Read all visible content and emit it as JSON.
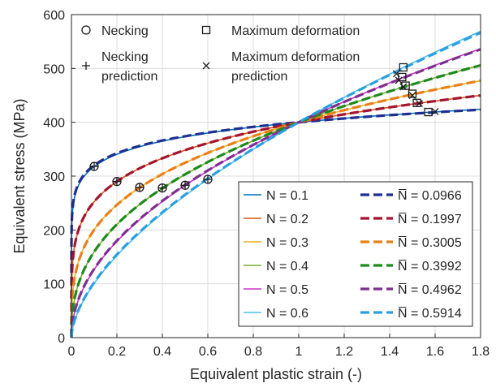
{
  "chart_data": {
    "type": "line",
    "xlabel": "Equivalent plastic strain (-)",
    "ylabel": "Equivalent stress (MPa)",
    "xlim": [
      0,
      1.8
    ],
    "ylim": [
      0,
      600
    ],
    "xticks": [
      "0",
      "0.2",
      "0.4",
      "0.6",
      "0.8",
      "1",
      "1.2",
      "1.4",
      "1.6",
      "1.8"
    ],
    "yticks": [
      "0",
      "100",
      "200",
      "300",
      "400",
      "500",
      "600"
    ],
    "grid": true,
    "model": "stress = 400 * strain^N",
    "series": [
      {
        "name": "N = 0.1",
        "exponent": 0.1,
        "style": "solid",
        "color": "#0072BD"
      },
      {
        "name": "N = 0.2",
        "exponent": 0.2,
        "style": "solid",
        "color": "#D95319"
      },
      {
        "name": "N = 0.3",
        "exponent": 0.3,
        "style": "solid",
        "color": "#EDB120"
      },
      {
        "name": "N = 0.4",
        "exponent": 0.4,
        "style": "solid",
        "color": "#77AC30"
      },
      {
        "name": "N = 0.5",
        "exponent": 0.5,
        "style": "solid",
        "color": "#CC33CC"
      },
      {
        "name": "N = 0.6",
        "exponent": 0.6,
        "style": "solid",
        "color": "#4DBEEE"
      },
      {
        "name": "N̅ = 0.0966",
        "exponent": 0.0966,
        "style": "dashed",
        "color": "#1F2F8F"
      },
      {
        "name": "N̅ = 0.1997",
        "exponent": 0.1997,
        "style": "dashed",
        "color": "#A2142F"
      },
      {
        "name": "N̅ = 0.3005",
        "exponent": 0.3005,
        "style": "dashed",
        "color": "#E8801A"
      },
      {
        "name": "N̅ = 0.3992",
        "exponent": 0.3992,
        "style": "dashed",
        "color": "#1E8A1E"
      },
      {
        "name": "N̅ = 0.4962",
        "exponent": 0.4962,
        "style": "dashed",
        "color": "#7E2F8E"
      },
      {
        "name": "N̅ = 0.5914",
        "exponent": 0.5914,
        "style": "dashed",
        "color": "#2B9FE0"
      }
    ],
    "markers": {
      "necking": {
        "label": "Necking",
        "symbol": "circle",
        "points": [
          [
            0.1,
            318
          ],
          [
            0.2,
            290
          ],
          [
            0.3,
            279
          ],
          [
            0.4,
            278
          ],
          [
            0.5,
            283
          ],
          [
            0.6,
            294
          ]
        ]
      },
      "maximum_deformation": {
        "label": "Maximum deformation",
        "symbol": "square",
        "points": [
          [
            1.57,
            419
          ],
          [
            1.52,
            436
          ],
          [
            1.5,
            453
          ],
          [
            1.47,
            468
          ],
          [
            1.455,
            484
          ],
          [
            1.46,
            502
          ]
        ]
      },
      "necking_prediction": {
        "label": "Necking prediction",
        "symbol": "plus",
        "points": [
          [
            0.1,
            318
          ],
          [
            0.2,
            290
          ],
          [
            0.3,
            279
          ],
          [
            0.4,
            278
          ],
          [
            0.5,
            283
          ],
          [
            0.6,
            294
          ]
        ]
      },
      "maximum_deformation_prediction": {
        "label": "Maximum deformation prediction",
        "symbol": "x",
        "points": [
          [
            1.6,
            420
          ],
          [
            1.53,
            435
          ],
          [
            1.5,
            450
          ],
          [
            1.46,
            466
          ],
          [
            1.44,
            478
          ],
          [
            1.43,
            490
          ]
        ]
      }
    },
    "top_legend": {
      "necking": [
        "Necking"
      ],
      "maximum_deformation": [
        "Maximum deformation"
      ],
      "necking_prediction": [
        "Necking",
        "prediction"
      ],
      "maximum_deformation_prediction": [
        "Maximum deformation",
        "prediction"
      ]
    },
    "line_legend_placement": "bottom-right"
  }
}
